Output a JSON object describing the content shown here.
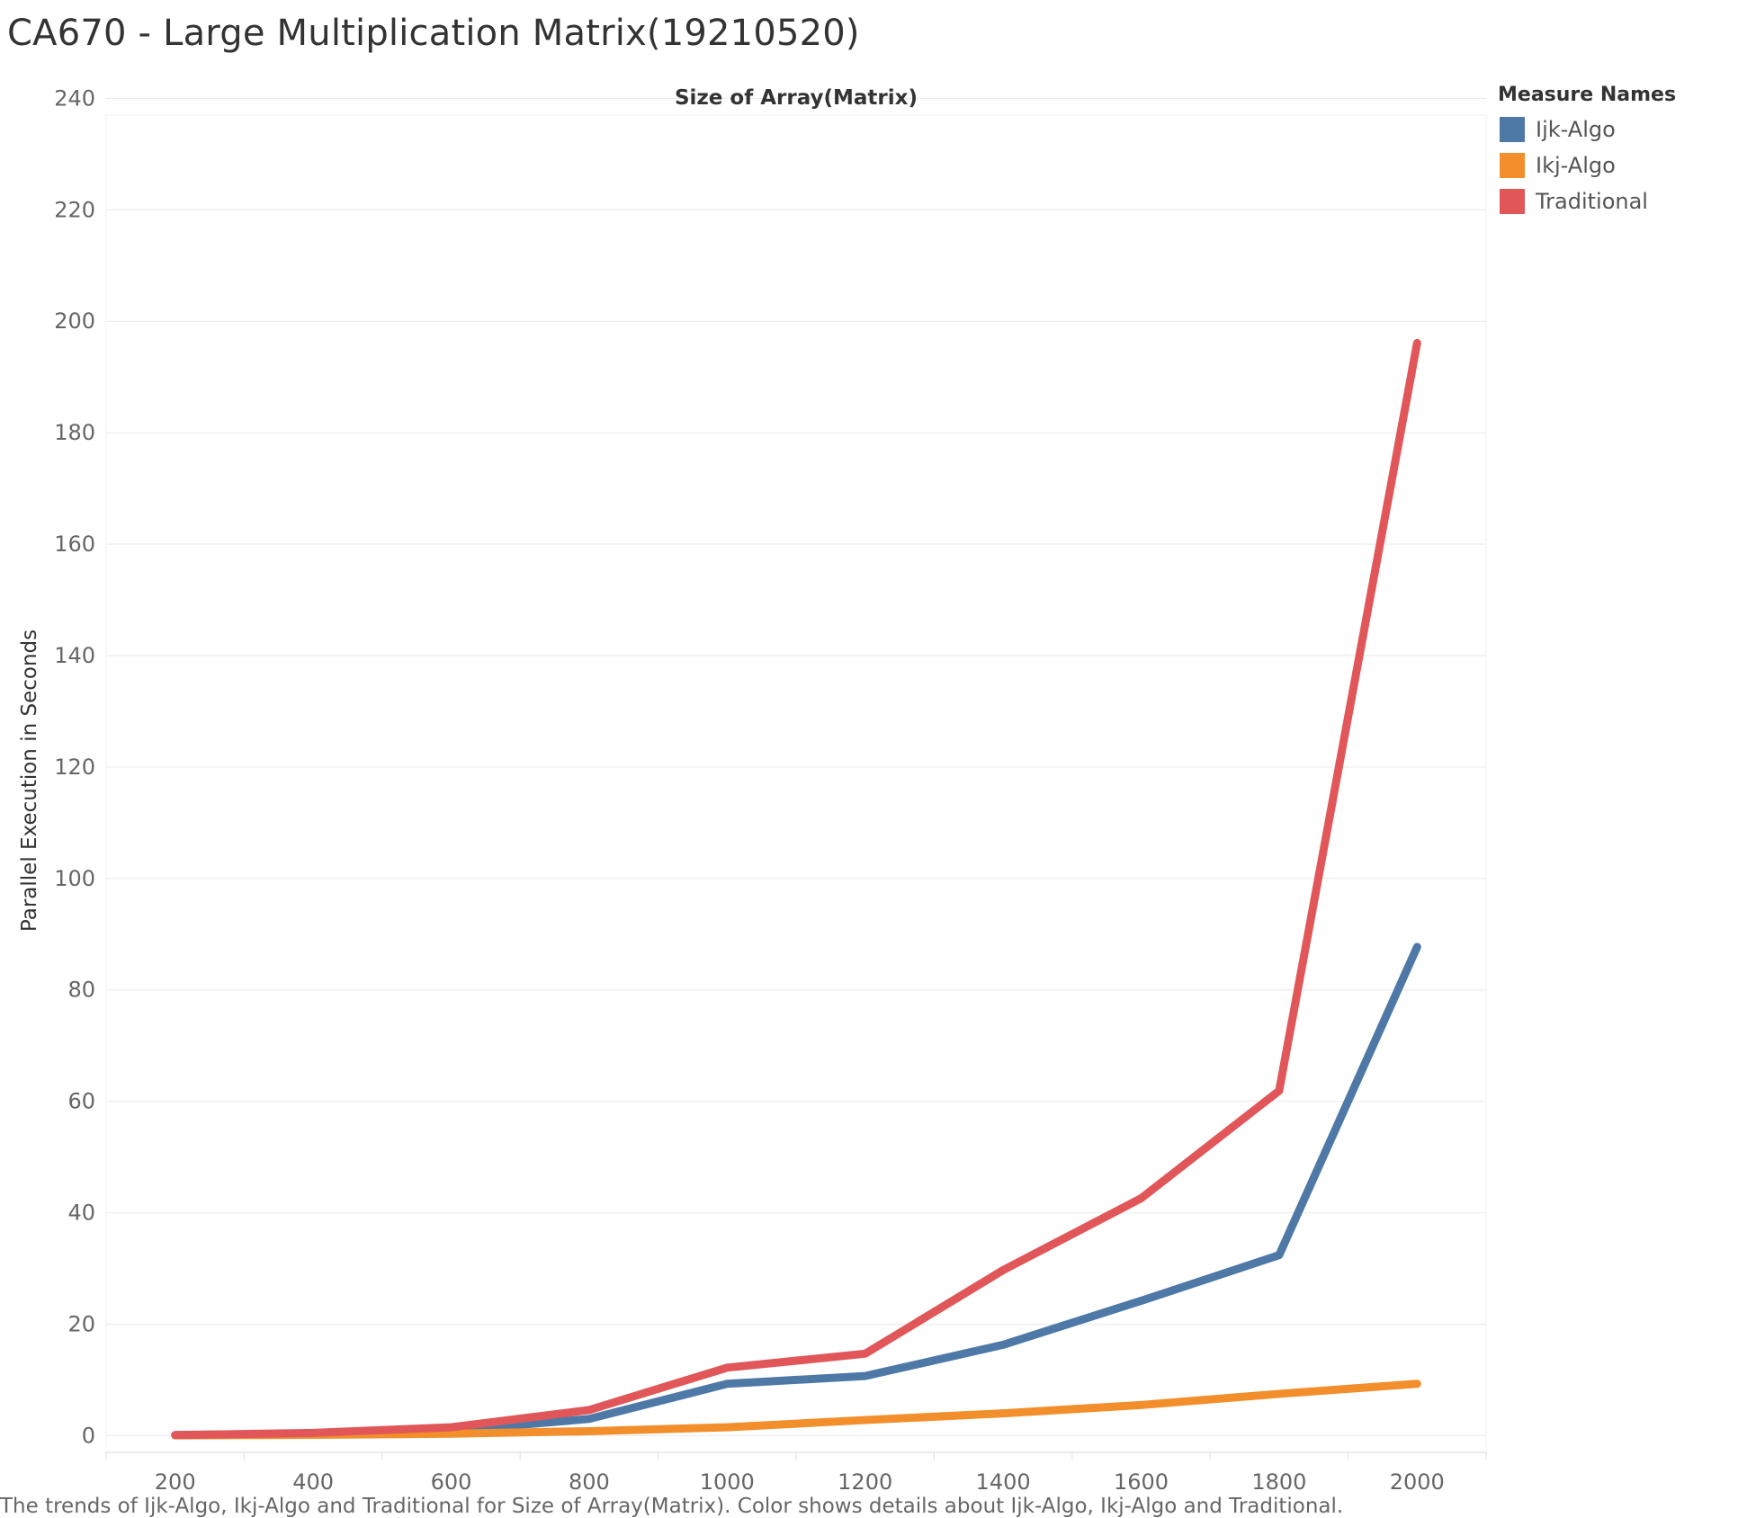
{
  "title": "CA670 - Large Multiplication Matrix(19210520)",
  "caption": "The trends of Ijk-Algo, Ikj-Algo and Traditional for Size of Array(Matrix).  Color shows details about Ijk-Algo, Ikj-Algo and Traditional.",
  "legend": {
    "title": "Measure Names",
    "placement": "top-right",
    "items": [
      {
        "label": "Ijk-Algo",
        "color": "#4e79a7"
      },
      {
        "label": "Ikj-Algo",
        "color": "#f28e2b"
      },
      {
        "label": "Traditional",
        "color": "#e15759"
      }
    ]
  },
  "chart_data": {
    "type": "line",
    "xlabel": "Size of Array(Matrix)",
    "ylabel": "Parallel Execution in Seconds",
    "x": [
      200,
      400,
      600,
      800,
      1000,
      1200,
      1400,
      1600,
      1800,
      2000
    ],
    "x_ticks": [
      "200",
      "400",
      "600",
      "800",
      "1000",
      "1200",
      "1400",
      "1600",
      "1800",
      "2000"
    ],
    "y_ticks": [
      "0",
      "20",
      "40",
      "60",
      "80",
      "100",
      "120",
      "140",
      "160",
      "180",
      "200",
      "220",
      "240"
    ],
    "xlim": [
      100,
      2100
    ],
    "ylim": [
      -3,
      237
    ],
    "grid": true,
    "series": [
      {
        "name": "Ijk-Algo",
        "color": "#4e79a7",
        "values": [
          0.1,
          0.4,
          0.9,
          3.0,
          9.3,
          10.7,
          16.3,
          24.2,
          32.4,
          87.7
        ]
      },
      {
        "name": "Ikj-Algo",
        "color": "#f28e2b",
        "values": [
          0.05,
          0.15,
          0.35,
          0.8,
          1.5,
          2.8,
          4.0,
          5.5,
          7.5,
          9.3
        ]
      },
      {
        "name": "Traditional",
        "color": "#e15759",
        "values": [
          0.1,
          0.5,
          1.5,
          4.6,
          12.2,
          14.7,
          29.7,
          42.6,
          61.9,
          196.1
        ]
      }
    ]
  }
}
